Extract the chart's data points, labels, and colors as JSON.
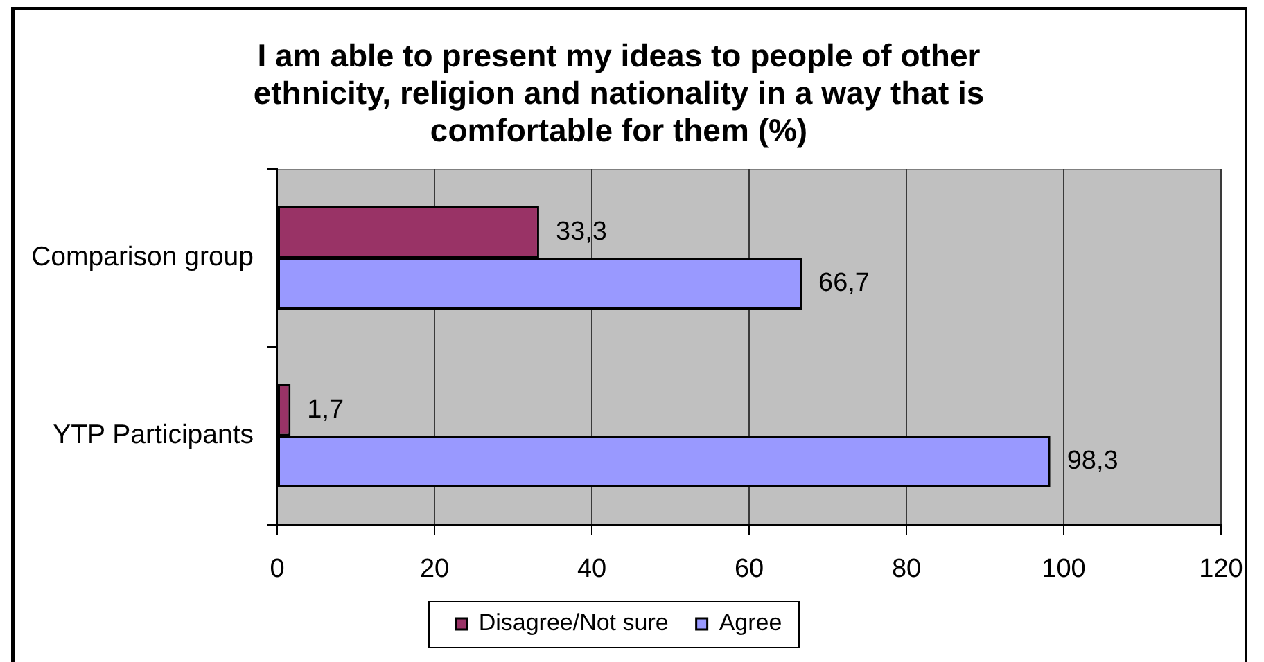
{
  "chart_data": {
    "type": "bar",
    "orientation": "horizontal",
    "title": "I am able to present my ideas to people of other ethnicity, religion and nationality in a way that is comfortable for them (%)",
    "categories": [
      "Comparison group",
      "YTP Participants"
    ],
    "series": [
      {
        "name": "Disagree/Not sure",
        "color": "#993366",
        "values": [
          33.3,
          1.7
        ],
        "value_labels": [
          "33,3",
          "1,7"
        ]
      },
      {
        "name": "Agree",
        "color": "#9999ff",
        "values": [
          66.7,
          98.3
        ],
        "value_labels": [
          "66,7",
          "98,3"
        ]
      }
    ],
    "xlim": [
      0,
      120
    ],
    "xticks": [
      0,
      20,
      40,
      60,
      80,
      100,
      120
    ],
    "grid": "x",
    "legend": "bottom"
  }
}
